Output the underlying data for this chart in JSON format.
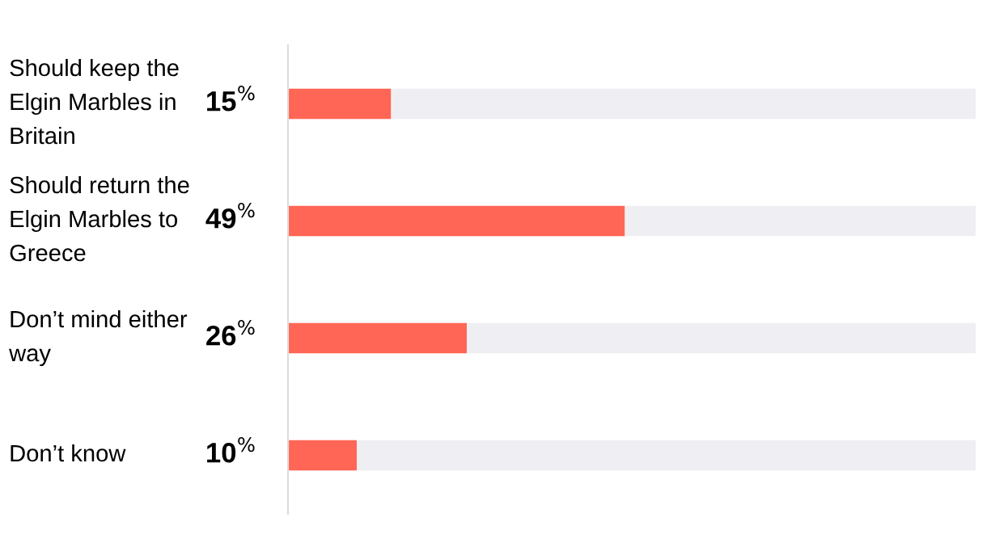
{
  "chart_data": {
    "type": "bar",
    "orientation": "horizontal",
    "stacked": true,
    "categories": [
      "Should keep the\nElgin Marbles in\nBritain",
      "Should return the\nElgin Marbles to\nGreece",
      "Don’t mind either\nway",
      "Don’t know"
    ],
    "series": [
      {
        "color": "#ff6655",
        "values": [
          15,
          49,
          26,
          10
        ],
        "value_labels": [
          "15$^{%}$",
          "49$^{%}$",
          "26$^{%}$",
          "10$^{%}$"
        ]
      },
      {
        "color": "#efeff3",
        "values": [
          85,
          51,
          74,
          90
        ]
      }
    ],
    "xlim": [
      0,
      100
    ]
  }
}
